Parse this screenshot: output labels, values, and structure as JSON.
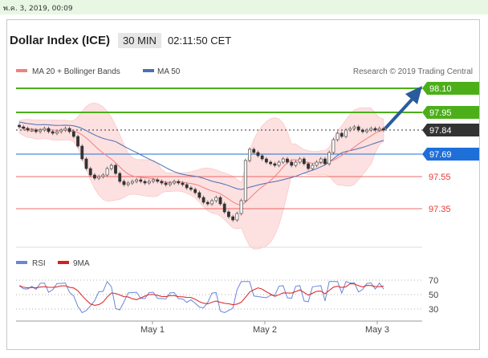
{
  "status_bar": {
    "text": "พ.ค. 3, 2019, 00:09"
  },
  "header": {
    "title": "Dollar Index (ICE)",
    "timeframe": "30 MIN",
    "time": "02:11:50 CET"
  },
  "credit": "Research © 2019 Trading Central",
  "colors": {
    "target": "#4caf1a",
    "current": "#333333",
    "support": "#1e6fd8",
    "resistance_red": "#e83a3a",
    "ma20": "#f08080",
    "ma50": "#4a6fb5",
    "band_fill": "#fde0e0",
    "arrow": "#2a5b9c",
    "rsi": "#6a86d6",
    "ma9": "#d81e1e"
  },
  "chart_data": [
    {
      "type": "candlestick",
      "legend": [
        "MA 20 + Bollinger Bands",
        "MA 50"
      ],
      "x_tick_labels": [
        "May 1",
        "May 2",
        "May 3"
      ],
      "ylim": [
        97.2,
        98.15
      ],
      "levels": [
        {
          "label": "98.10",
          "value": 98.1,
          "kind": "target"
        },
        {
          "label": "97.95",
          "value": 97.95,
          "kind": "target"
        },
        {
          "label": "97.84",
          "value": 97.84,
          "kind": "current"
        },
        {
          "label": "97.69",
          "value": 97.69,
          "kind": "support"
        },
        {
          "label": "97.55",
          "value": 97.55,
          "kind": "level"
        },
        {
          "label": "97.35",
          "value": 97.35,
          "kind": "level"
        }
      ],
      "close": [
        97.86,
        97.85,
        97.84,
        97.84,
        97.83,
        97.84,
        97.85,
        97.83,
        97.82,
        97.83,
        97.84,
        97.85,
        97.83,
        97.8,
        97.74,
        97.66,
        97.6,
        97.56,
        97.54,
        97.55,
        97.56,
        97.6,
        97.62,
        97.57,
        97.52,
        97.5,
        97.51,
        97.52,
        97.53,
        97.52,
        97.51,
        97.52,
        97.53,
        97.52,
        97.51,
        97.5,
        97.51,
        97.52,
        97.51,
        97.5,
        97.48,
        97.47,
        97.45,
        97.42,
        97.39,
        97.38,
        97.4,
        97.42,
        97.38,
        97.33,
        97.3,
        97.28,
        97.32,
        97.4,
        97.65,
        97.72,
        97.7,
        97.68,
        97.66,
        97.64,
        97.63,
        97.62,
        97.64,
        97.66,
        97.64,
        97.62,
        97.64,
        97.66,
        97.63,
        97.6,
        97.62,
        97.64,
        97.66,
        97.63,
        97.7,
        97.78,
        97.82,
        97.8,
        97.84,
        97.85,
        97.86,
        97.84,
        97.83,
        97.84,
        97.85,
        97.84,
        97.85,
        97.84
      ]
    },
    {
      "type": "line",
      "series": [
        {
          "name": "RSI"
        },
        {
          "name": "9MA"
        }
      ],
      "y_tick_labels": [
        "70",
        "50",
        "30"
      ],
      "ylim": [
        20,
        80
      ],
      "x_tick_labels": [
        "May 1",
        "May 2",
        "May 3"
      ]
    }
  ]
}
